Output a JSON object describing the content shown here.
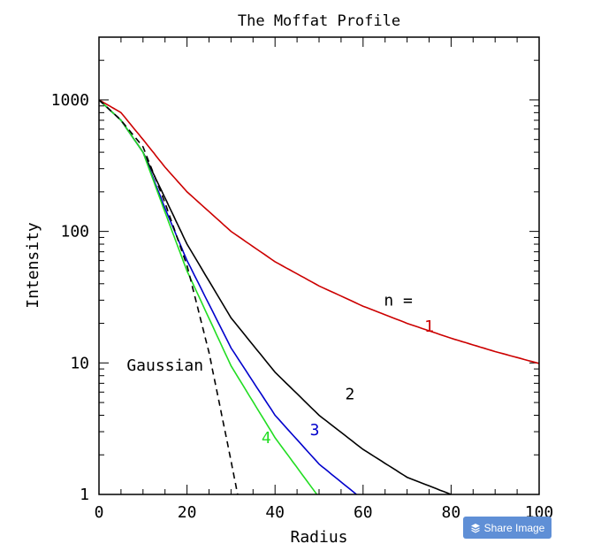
{
  "chart_data": {
    "type": "line",
    "title": "The Moffat Profile",
    "xlabel": "Radius",
    "ylabel": "Intensity",
    "xlim": [
      0,
      100
    ],
    "ylim": [
      1,
      3000
    ],
    "yscale": "log",
    "x_ticks": [
      "0",
      "20",
      "40",
      "60",
      "80",
      "100"
    ],
    "y_ticks": [
      "1",
      "10",
      "100",
      "1000"
    ],
    "grid": false,
    "legend_label": "n =",
    "series": [
      {
        "name": "1",
        "color": "#cc0000",
        "dashed": false,
        "x": [
          0,
          5,
          10,
          15,
          20,
          30,
          40,
          50,
          60,
          70,
          80,
          90,
          100
        ],
        "y": [
          1000,
          800,
          500,
          308,
          200,
          100,
          58.8,
          38.5,
          27.0,
          20.0,
          15.4,
          12.2,
          9.9
        ]
      },
      {
        "name": "2",
        "color": "#000000",
        "dashed": false,
        "x": [
          0,
          5,
          10,
          15,
          20,
          30,
          40,
          50,
          60,
          70,
          80,
          85
        ],
        "y": [
          1000,
          700,
          400,
          180,
          80,
          22,
          8.5,
          4.0,
          2.2,
          1.35,
          1.0,
          0.9
        ]
      },
      {
        "name": "3",
        "color": "#0000cc",
        "dashed": false,
        "x": [
          0,
          5,
          10,
          15,
          20,
          30,
          40,
          50,
          58.5
        ],
        "y": [
          1000,
          700,
          400,
          150,
          60,
          13,
          4.0,
          1.7,
          1.0
        ]
      },
      {
        "name": "4",
        "color": "#22dd22",
        "dashed": false,
        "x": [
          0,
          5,
          10,
          15,
          20,
          30,
          40,
          49.5
        ],
        "y": [
          1000,
          700,
          400,
          140,
          50,
          9.5,
          2.7,
          1.0
        ]
      },
      {
        "name": "Gaussian",
        "color": "#000000",
        "dashed": true,
        "x": [
          0,
          5,
          10,
          15,
          20,
          25,
          30,
          31.5
        ],
        "y": [
          1000,
          700,
          440,
          165,
          55,
          12,
          1.8,
          1.0
        ]
      }
    ],
    "annotations": [
      {
        "text": "n =",
        "x": 68,
        "y": 30,
        "color": "#000000"
      },
      {
        "text": "1",
        "x": 75,
        "y": 19,
        "color": "#cc0000"
      },
      {
        "text": "2",
        "x": 57,
        "y": 5.8,
        "color": "#000000"
      },
      {
        "text": "3",
        "x": 49,
        "y": 3.1,
        "color": "#0000cc"
      },
      {
        "text": "4",
        "x": 38,
        "y": 2.7,
        "color": "#22dd22"
      },
      {
        "text": "Gaussian",
        "x": 15,
        "y": 9.6,
        "color": "#000000"
      }
    ]
  },
  "share_button": {
    "label": "Share Image",
    "icon": "layers-icon",
    "color": "#5f8fd6"
  }
}
